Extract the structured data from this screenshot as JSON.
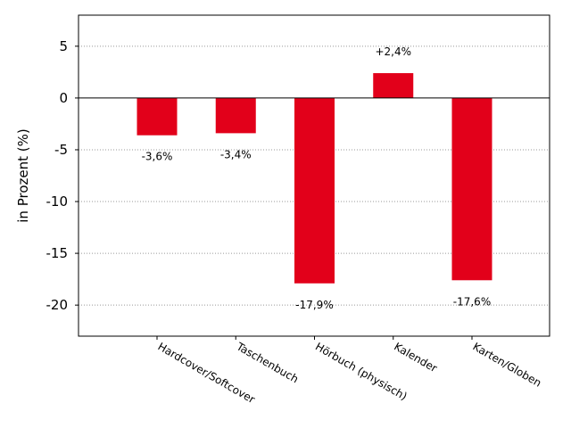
{
  "chart_data": {
    "type": "bar",
    "categories": [
      "Hardcover/Softcover",
      "Taschenbuch",
      "Hörbuch (physisch)",
      "Kalender",
      "Karten/Globen"
    ],
    "values": [
      -3.6,
      -3.4,
      -17.9,
      2.4,
      -17.6
    ],
    "data_labels": [
      "-3,6%",
      "-3,4%",
      "-17,9%",
      "+2,4%",
      "-17,6%"
    ],
    "ylabel": "in Prozent (%)",
    "xlabel": "",
    "title": "",
    "ylim": [
      -23,
      8
    ],
    "yticks": [
      5,
      0,
      -5,
      -10,
      -15,
      -20
    ],
    "grid": "horizontal dotted",
    "bar_color": "#e2001a",
    "legend": "none"
  }
}
